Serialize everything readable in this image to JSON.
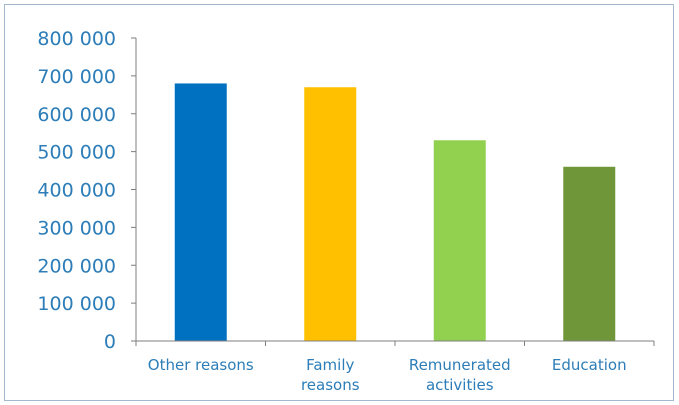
{
  "chart_data": {
    "type": "bar",
    "title": "",
    "xlabel": "",
    "ylabel": "",
    "ylim": [
      0,
      800000
    ],
    "y_ticks": [
      0,
      100000,
      200000,
      300000,
      400000,
      500000,
      600000,
      700000,
      800000
    ],
    "y_tick_labels": [
      "0",
      "100 000",
      "200 000",
      "300 000",
      "400 000",
      "500 000",
      "600 000",
      "700 000",
      "800 000"
    ],
    "categories": [
      {
        "label_lines": [
          "Other reasons"
        ],
        "value": 680000,
        "color": "#0070c0"
      },
      {
        "label_lines": [
          "Family",
          "reasons"
        ],
        "value": 670000,
        "color": "#ffc000"
      },
      {
        "label_lines": [
          "Remunerated",
          "activities"
        ],
        "value": 530000,
        "color": "#92d050"
      },
      {
        "label_lines": [
          "Education"
        ],
        "value": 460000,
        "color": "#70963a"
      }
    ],
    "grid": false,
    "legend": "none",
    "colors": {
      "tick_text": "#2c7db8",
      "axis_line": "#7f7f7f",
      "frame": "#a5b7cf"
    }
  }
}
